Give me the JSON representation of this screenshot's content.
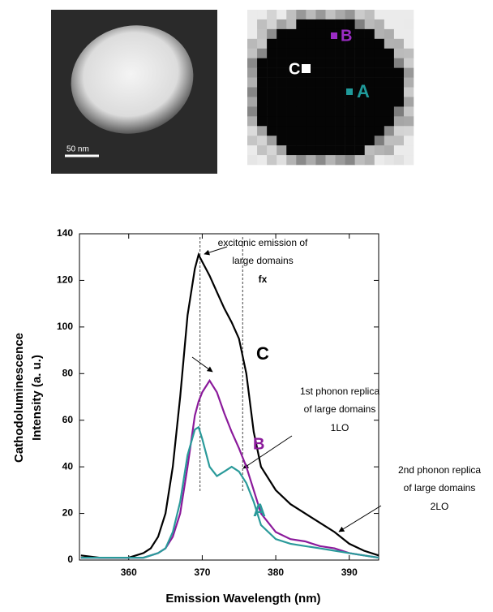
{
  "images": {
    "scale_bar": "50 nm",
    "points": [
      "C",
      "B",
      "A"
    ]
  },
  "chart_data": {
    "type": "line",
    "x_label": "Emission Wavelength (nm)",
    "y_label": [
      "Cathodoluminescence",
      "Intensity (a. u.)"
    ],
    "x": [
      353.5,
      356,
      358,
      360,
      362,
      363,
      364,
      365,
      366,
      367,
      368,
      369,
      369.5,
      370,
      371,
      372,
      373,
      374,
      375,
      376,
      377,
      378,
      380,
      382,
      384,
      386,
      388,
      390,
      392,
      394
    ],
    "series": [
      {
        "name": "C",
        "color": "#000000",
        "values": [
          2,
          1,
          1,
          1,
          3,
          5,
          10,
          20,
          40,
          70,
          105,
          125,
          131,
          128,
          122,
          115,
          108,
          102,
          95,
          80,
          55,
          40,
          30,
          24,
          20,
          16,
          12,
          7,
          4,
          2
        ]
      },
      {
        "name": "B",
        "color": "#8b1a9b",
        "values": [
          1,
          1,
          1,
          1,
          1,
          2,
          3,
          5,
          10,
          20,
          40,
          62,
          68,
          72,
          77,
          72,
          63,
          55,
          48,
          40,
          30,
          20,
          12,
          9,
          8,
          6,
          5,
          3,
          2,
          1
        ]
      },
      {
        "name": "A",
        "color": "#2a9a9a",
        "values": [
          1,
          1,
          1,
          1,
          1,
          2,
          3,
          5,
          12,
          25,
          45,
          56,
          57,
          52,
          40,
          36,
          38,
          40,
          38,
          33,
          25,
          15,
          9,
          7,
          6,
          5,
          4,
          3,
          2,
          1
        ]
      }
    ],
    "vlines": [
      369.7,
      375.5
    ],
    "annotations": [
      [
        "excitonic emission of",
        "large domains",
        "fx"
      ],
      [
        "1st phonon replica",
        "of large domains",
        "1LO"
      ],
      [
        "2nd phonon replica",
        "of large domains",
        "2LO"
      ]
    ],
    "xlim": [
      353.3,
      394
    ],
    "xticks": [
      360,
      370,
      380,
      390
    ],
    "ylim": [
      0,
      140
    ],
    "yticks": [
      0,
      20,
      40,
      60,
      80,
      100,
      120,
      140
    ]
  }
}
